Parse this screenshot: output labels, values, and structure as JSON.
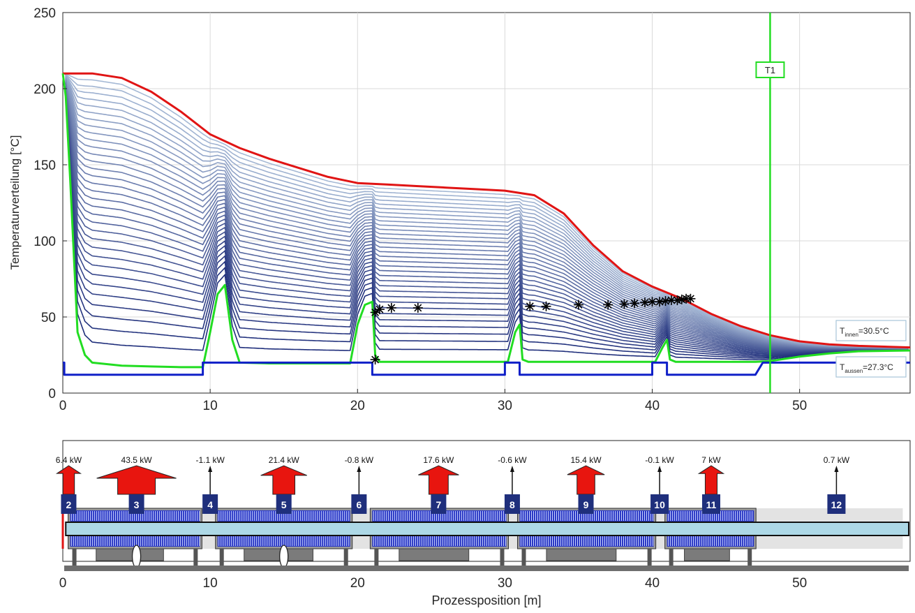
{
  "chart_data": [
    {
      "type": "line",
      "ylabel": "Temperaturverteilung [°C]",
      "xlim": [
        0,
        57.5
      ],
      "ylim": [
        0,
        250
      ],
      "x_ticks": [
        0,
        10,
        20,
        30,
        40,
        50
      ],
      "x_tick_labels": [
        "0",
        "10",
        "20",
        "30",
        "40",
        "50"
      ],
      "y_ticks": [
        0,
        50,
        100,
        150,
        200,
        250
      ],
      "y_tick_labels": [
        "0",
        "50",
        "100",
        "150",
        "200",
        "250"
      ],
      "grid": true,
      "colors": {
        "surface": "#e01414",
        "inner": "#22dd22",
        "ambient": "#1020c8",
        "layers_dark": "#1b2a78",
        "layers_light": "#a9bdd8",
        "markers": "#000000"
      },
      "series": [
        {
          "role": "surface",
          "color": "#e01414",
          "x": [
            0,
            0.5,
            2,
            4,
            6,
            8,
            10,
            12,
            14,
            16,
            18,
            20,
            22,
            24,
            26,
            28,
            30,
            32,
            34,
            36,
            38,
            40,
            42,
            44,
            46,
            48,
            50,
            52,
            54,
            57.5
          ],
          "y": [
            210,
            210,
            210,
            207,
            198,
            185,
            170,
            161,
            154,
            148,
            142,
            138,
            137,
            136,
            135,
            134,
            133,
            130,
            118,
            97,
            80,
            70,
            62,
            52,
            44,
            38,
            34,
            32,
            31,
            30
          ]
        },
        {
          "role": "inner",
          "color": "#22dd22",
          "x": [
            0,
            0.2,
            0.5,
            1,
            1.5,
            2,
            4,
            6,
            8,
            9.5,
            10,
            10.5,
            11,
            11.5,
            12,
            14,
            16,
            18,
            19.5,
            20,
            20.5,
            21,
            21.2,
            21.5,
            22,
            24,
            26,
            28,
            30.2,
            30.7,
            31,
            31.2,
            31.6,
            32,
            34,
            36,
            38,
            40.2,
            40.7,
            41,
            41.2,
            41.6,
            42,
            44,
            46,
            47,
            48,
            50,
            52,
            54,
            57.5
          ],
          "y": [
            210,
            195,
            140,
            40,
            25,
            20,
            18,
            17.5,
            17,
            17,
            40,
            65,
            71,
            35,
            20,
            19.5,
            19.5,
            19.5,
            19.5,
            45,
            58,
            60,
            25,
            20.5,
            20.5,
            20.5,
            20.5,
            20.5,
            20.5,
            40,
            45,
            22,
            20.5,
            20.5,
            20.5,
            20.5,
            20.5,
            20.5,
            30,
            35,
            22,
            20.5,
            20.5,
            20.5,
            20.5,
            20.5,
            21,
            24,
            26,
            27.5,
            28
          ]
        },
        {
          "role": "ambient",
          "color": "#1020c8",
          "x": [
            0,
            0.1,
            0.1,
            9.5,
            9.5,
            21,
            21,
            30,
            30,
            31,
            31,
            40,
            40,
            41,
            41,
            47,
            47.5,
            57.5
          ],
          "y": [
            20,
            20,
            12,
            12,
            20,
            20,
            12,
            12,
            20,
            20,
            12,
            12,
            20,
            20,
            12,
            12,
            20,
            20
          ]
        }
      ],
      "markers": {
        "symbol": "*",
        "x": [
          21.2,
          21.5,
          22.3,
          24.1,
          31.7,
          32.8,
          35,
          37,
          38.1,
          38.8,
          39.5,
          40,
          40.5,
          40.9,
          41.3,
          41.7,
          42,
          42.3,
          42.6,
          21.2
        ],
        "y": [
          53,
          55,
          56,
          56,
          57,
          57,
          58,
          58,
          58.5,
          59,
          59.5,
          60,
          60,
          60.5,
          61,
          61,
          61.5,
          62,
          62,
          22
        ]
      },
      "annotations": [
        {
          "label": "T1",
          "x": 48
        },
        {
          "label": "T_innen",
          "sub": "innen",
          "base": "T",
          "value": "=30.5°C"
        },
        {
          "label": "T_aussen",
          "sub": "aussen",
          "base": "T",
          "value": "=27.3°C"
        }
      ]
    },
    {
      "type": "diagram",
      "xlabel": "Prozessposition [m]",
      "xlim": [
        0,
        57.5
      ],
      "x_ticks": [
        0,
        10,
        20,
        30,
        40,
        50
      ],
      "x_tick_labels": [
        "0",
        "10",
        "20",
        "30",
        "40",
        "50"
      ],
      "zones": [
        {
          "id": "2",
          "x": 0.4,
          "power": "6.4 kW",
          "kw": 6.4
        },
        {
          "id": "3",
          "x": 5,
          "power": "43.5 kW",
          "kw": 43.5
        },
        {
          "id": "4",
          "x": 10,
          "power": "-1.1 kW",
          "kw": -1.1
        },
        {
          "id": "5",
          "x": 15,
          "power": "21.4 kW",
          "kw": 21.4
        },
        {
          "id": "6",
          "x": 20.1,
          "power": "-0.8 kW",
          "kw": -0.8
        },
        {
          "id": "7",
          "x": 25.5,
          "power": "17.6 kW",
          "kw": 17.6
        },
        {
          "id": "8",
          "x": 30.5,
          "power": "-0.6 kW",
          "kw": -0.6
        },
        {
          "id": "9",
          "x": 35.5,
          "power": "15.4 kW",
          "kw": 15.4
        },
        {
          "id": "10",
          "x": 40.5,
          "power": "-0.1 kW",
          "kw": -0.1
        },
        {
          "id": "11",
          "x": 44,
          "power": "7 kW",
          "kw": 7
        },
        {
          "id": "12",
          "x": 52.5,
          "power": "0.7 kW",
          "kw": 0.7
        }
      ],
      "heaters": [
        [
          0.5,
          9.3
        ],
        [
          10.5,
          19.5
        ],
        [
          21,
          30.1
        ],
        [
          31,
          40.1
        ],
        [
          41,
          46.9
        ]
      ],
      "colors": {
        "arrow": "#e8150f",
        "badge": "#1f2f7c",
        "heater": "#2a38c4",
        "web": "#add8e6",
        "frame": "#8a8a8a"
      }
    }
  ]
}
